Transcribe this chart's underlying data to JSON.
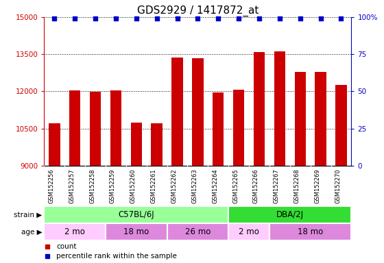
{
  "title": "GDS2929 / 1417872_at",
  "samples": [
    "GSM152256",
    "GSM152257",
    "GSM152258",
    "GSM152259",
    "GSM152260",
    "GSM152261",
    "GSM152262",
    "GSM152263",
    "GSM152264",
    "GSM152265",
    "GSM152266",
    "GSM152267",
    "GSM152268",
    "GSM152269",
    "GSM152270"
  ],
  "bar_values": [
    10700,
    12050,
    11980,
    12050,
    10750,
    10700,
    13380,
    13330,
    11950,
    12070,
    13580,
    13620,
    12800,
    12800,
    12250
  ],
  "bar_color": "#cc0000",
  "percentile_color": "#0000cc",
  "ylim_left": [
    9000,
    15000
  ],
  "ylim_right": [
    0,
    100
  ],
  "yticks_left": [
    9000,
    10500,
    12000,
    13500,
    15000
  ],
  "yticks_right": [
    0,
    25,
    50,
    75,
    100
  ],
  "title_fontsize": 11,
  "strain_groups": [
    {
      "label": "C57BL/6J",
      "start": 0,
      "end": 9,
      "color": "#99ff99"
    },
    {
      "label": "DBA/2J",
      "start": 9,
      "end": 15,
      "color": "#33dd33"
    }
  ],
  "age_groups": [
    {
      "label": "2 mo",
      "start": 0,
      "end": 3,
      "color": "#ffccff"
    },
    {
      "label": "18 mo",
      "start": 3,
      "end": 6,
      "color": "#dd88dd"
    },
    {
      "label": "26 mo",
      "start": 6,
      "end": 9,
      "color": "#dd88dd"
    },
    {
      "label": "2 mo",
      "start": 9,
      "end": 11,
      "color": "#ffccff"
    },
    {
      "label": "18 mo",
      "start": 11,
      "end": 15,
      "color": "#dd88dd"
    }
  ],
  "legend_items": [
    {
      "label": "count",
      "color": "#cc0000"
    },
    {
      "label": "percentile rank within the sample",
      "color": "#0000cc"
    }
  ],
  "fig_width": 5.6,
  "fig_height": 3.84,
  "dpi": 100
}
